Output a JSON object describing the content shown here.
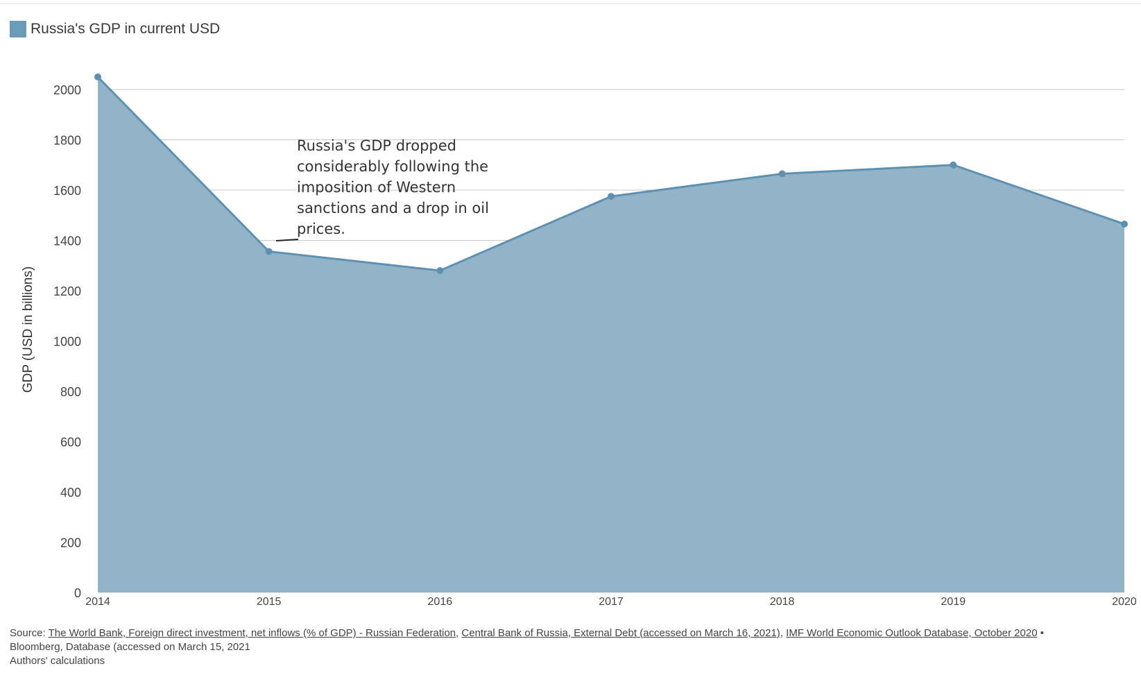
{
  "legend": {
    "label": "Russia's GDP in current USD",
    "color": "#6a9bb8"
  },
  "annotation": "Russia's GDP dropped considerably following the imposition of Western sanctions and a drop in oil prices.",
  "source": {
    "prefix": "Source: ",
    "links": [
      "The World Bank, Foreign direct investment, net inflows (% of GDP) - Russian Federation",
      "Central Bank of Russia, External Debt (accessed on March 16, 2021)",
      "IMF World Economic Outlook Database, October 2020"
    ],
    "bullet": " •",
    "line2": "Bloomberg, Database (accessed on March 15, 2021",
    "line3": "Authors' calculations"
  },
  "chart_data": {
    "type": "area",
    "x": [
      "2014",
      "2015",
      "2016",
      "2017",
      "2018",
      "2019",
      "2020"
    ],
    "series": [
      {
        "name": "Russia's GDP in current USD",
        "values": [
          2050,
          1356,
          1280,
          1575,
          1665,
          1700,
          1465
        ]
      }
    ],
    "ylabel": "GDP (USD in billions)",
    "xlabel": "",
    "ylim": [
      0,
      2000
    ],
    "yticks": [
      0,
      200,
      400,
      600,
      800,
      1000,
      1200,
      1400,
      1600,
      1800,
      2000
    ],
    "grid": true,
    "legend_position": "top-left",
    "colors": {
      "fill": "#93b4c8",
      "line": "#5e91b1",
      "grid": "#c9c9c9"
    }
  }
}
